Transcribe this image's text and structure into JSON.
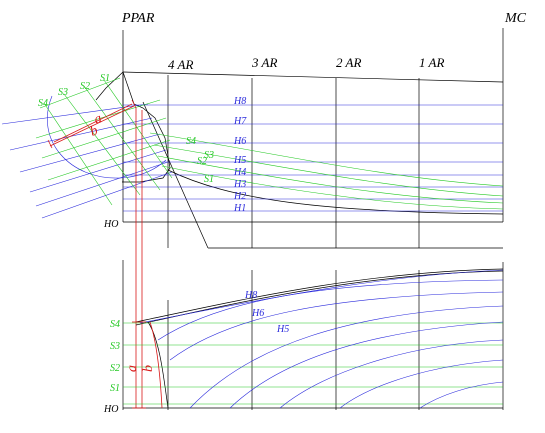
{
  "colors": {
    "construction": "#000000",
    "waterline": "#2a2adc",
    "buttock": "#22c822",
    "annotation": "#d81818"
  },
  "stations": {
    "ppar": "PPAR",
    "s4": "4 AR",
    "s3": "3 AR",
    "s2": "2 AR",
    "s1": "1 AR",
    "mc": "MC"
  },
  "upper_view": {
    "waterlines": [
      "H8",
      "H7",
      "H6",
      "H5",
      "H4",
      "H3",
      "H2",
      "H1"
    ],
    "buttocks": [
      "S4",
      "S3",
      "S2",
      "S1"
    ],
    "buttocks_body": [
      "S4",
      "S3",
      "S2",
      "S1"
    ],
    "baseline": "HO",
    "dim_a": "a",
    "dim_b": "b"
  },
  "lower_view": {
    "waterlines": [
      "H8",
      "H6",
      "H5"
    ],
    "buttocks": [
      "S4",
      "S3",
      "S2",
      "S1"
    ],
    "baseline": "HO",
    "dim_a": "a",
    "dim_b": "b"
  }
}
